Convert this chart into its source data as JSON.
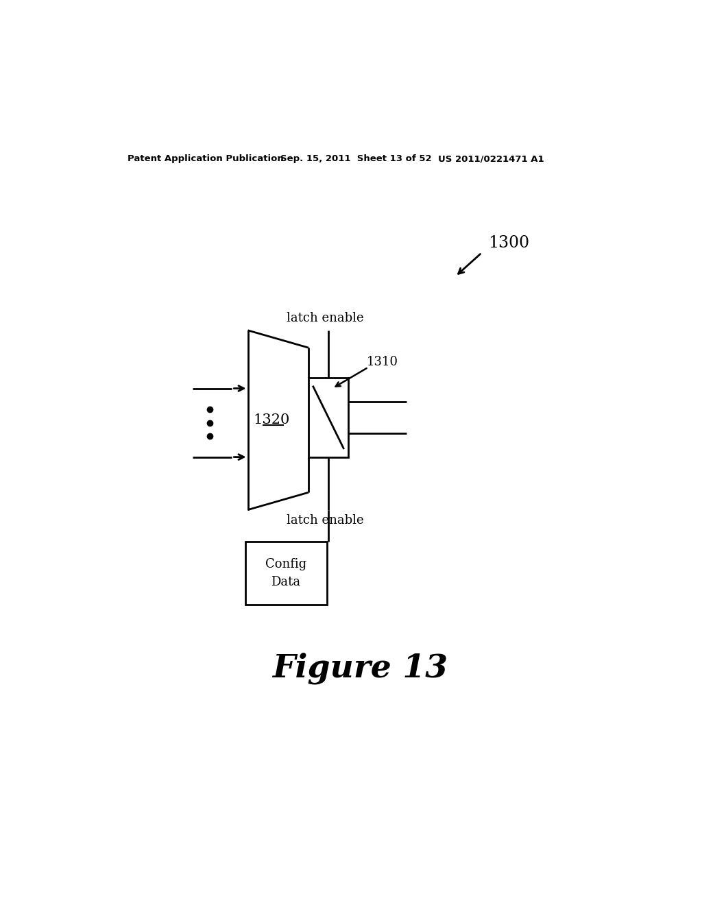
{
  "bg_color": "#ffffff",
  "header_left": "Patent Application Publication",
  "header_center": "Sep. 15, 2011  Sheet 13 of 52",
  "header_right": "US 2011/0221471 A1",
  "figure_label": "Figure 13",
  "label_1300": "1300",
  "label_1310": "1310",
  "label_1320": "1320",
  "label_latch_enable_top": "latch enable",
  "label_latch_enable_bot": "latch enable",
  "label_config": "Config\nData",
  "font_color": "#000000",
  "lw": 2.0
}
